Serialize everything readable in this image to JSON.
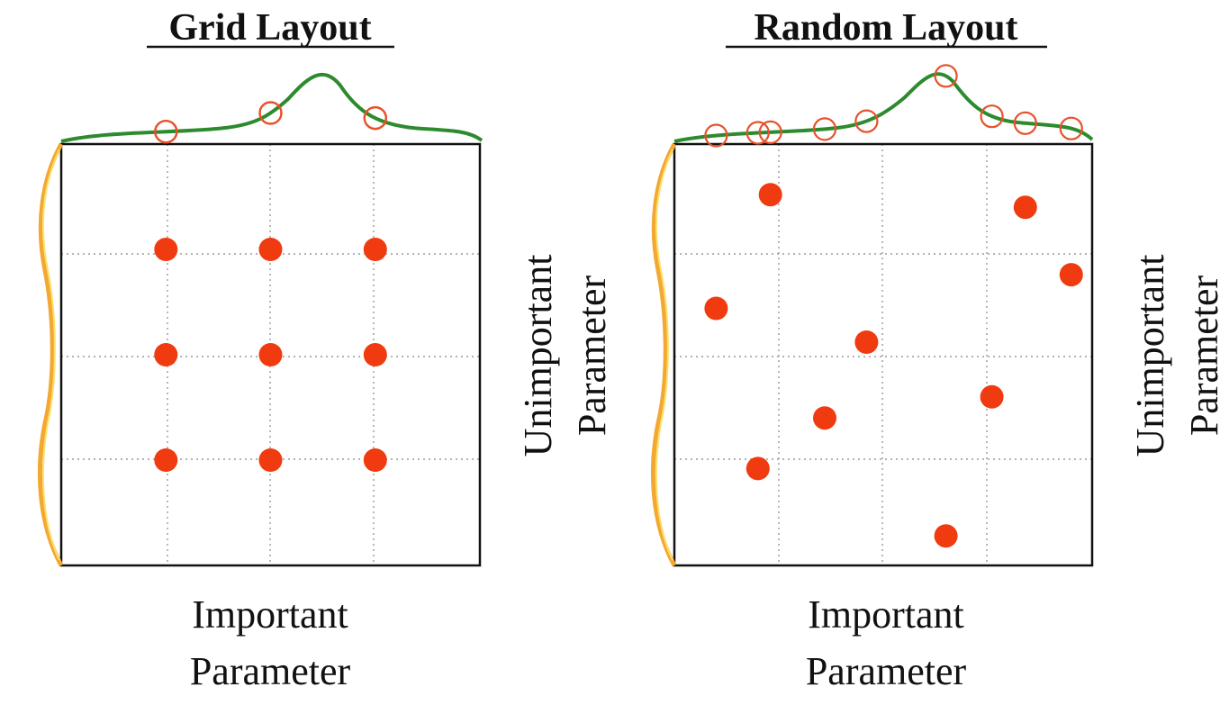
{
  "colors": {
    "point": "#f03a0f",
    "projection": "#e8512a",
    "top_curve": "#2e8a2e",
    "left_curve_outer": "#f2a832",
    "left_curve_inner": "#ffe06a",
    "grid": "#9a9a9a",
    "frame": "#111111"
  },
  "panels": [
    {
      "id": "grid",
      "title": "Grid Layout",
      "x_label": [
        "Important",
        "Parameter"
      ],
      "y_label": [
        "Unimportant",
        "Parameter"
      ],
      "points": [
        {
          "x": 0.25,
          "y": 0.75
        },
        {
          "x": 0.5,
          "y": 0.75
        },
        {
          "x": 0.75,
          "y": 0.75
        },
        {
          "x": 0.25,
          "y": 0.5
        },
        {
          "x": 0.5,
          "y": 0.5
        },
        {
          "x": 0.75,
          "y": 0.5
        },
        {
          "x": 0.25,
          "y": 0.25
        },
        {
          "x": 0.5,
          "y": 0.25
        },
        {
          "x": 0.75,
          "y": 0.25
        }
      ]
    },
    {
      "id": "random",
      "title": "Random Layout",
      "x_label": [
        "Important",
        "Parameter"
      ],
      "y_label": [
        "Unimportant",
        "Parameter"
      ],
      "points": [
        {
          "x": 0.23,
          "y": 0.88
        },
        {
          "x": 0.84,
          "y": 0.85
        },
        {
          "x": 0.1,
          "y": 0.61
        },
        {
          "x": 0.95,
          "y": 0.69
        },
        {
          "x": 0.46,
          "y": 0.53
        },
        {
          "x": 0.76,
          "y": 0.4
        },
        {
          "x": 0.36,
          "y": 0.35
        },
        {
          "x": 0.2,
          "y": 0.23
        },
        {
          "x": 0.65,
          "y": 0.07
        }
      ]
    }
  ]
}
